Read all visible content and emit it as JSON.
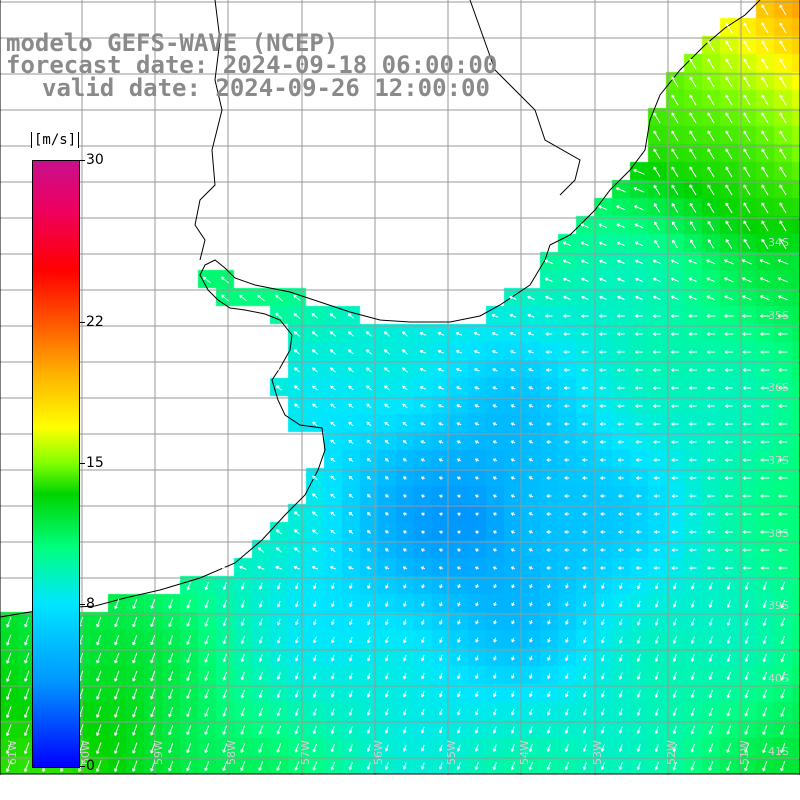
{
  "titles": {
    "line1": "modelo GEFS-WAVE (NCEP)",
    "line2": "forecast date: 2024-09-18 06:00:00",
    "line3": "valid date: 2024-09-26 12:00:00"
  },
  "colorbar": {
    "unit": "[m/s]",
    "ticks": [
      {
        "label": "30",
        "value": 30
      },
      {
        "label": "22",
        "value": 22
      },
      {
        "label": "15",
        "value": 15
      },
      {
        "label": "8",
        "value": 8
      },
      {
        "label": "0",
        "value": 0
      }
    ],
    "min": 0,
    "max": 30,
    "colors": [
      "#0000ff",
      "#0096ff",
      "#00e6ff",
      "#00ff82",
      "#00d400",
      "#7fff00",
      "#ffff00",
      "#ffb000",
      "#ff5a00",
      "#ff0000",
      "#ee0060",
      "#c8108c"
    ]
  },
  "map": {
    "lat_labels": [
      "34S",
      "35S",
      "36S",
      "37S",
      "38S",
      "39S",
      "40S",
      "41S"
    ],
    "lon_labels": [
      "61W",
      "60W",
      "59W",
      "58W",
      "57W",
      "56W",
      "55W",
      "54W",
      "53W",
      "52W",
      "51W"
    ],
    "lat_range": [
      -41.2,
      -30.0
    ],
    "lon_range": [
      -61.2,
      -50.6
    ],
    "land_color": "#ffffff",
    "coast_color": "#000000",
    "grid_color": "#999999",
    "arrow_color": "#ffffff"
  }
}
